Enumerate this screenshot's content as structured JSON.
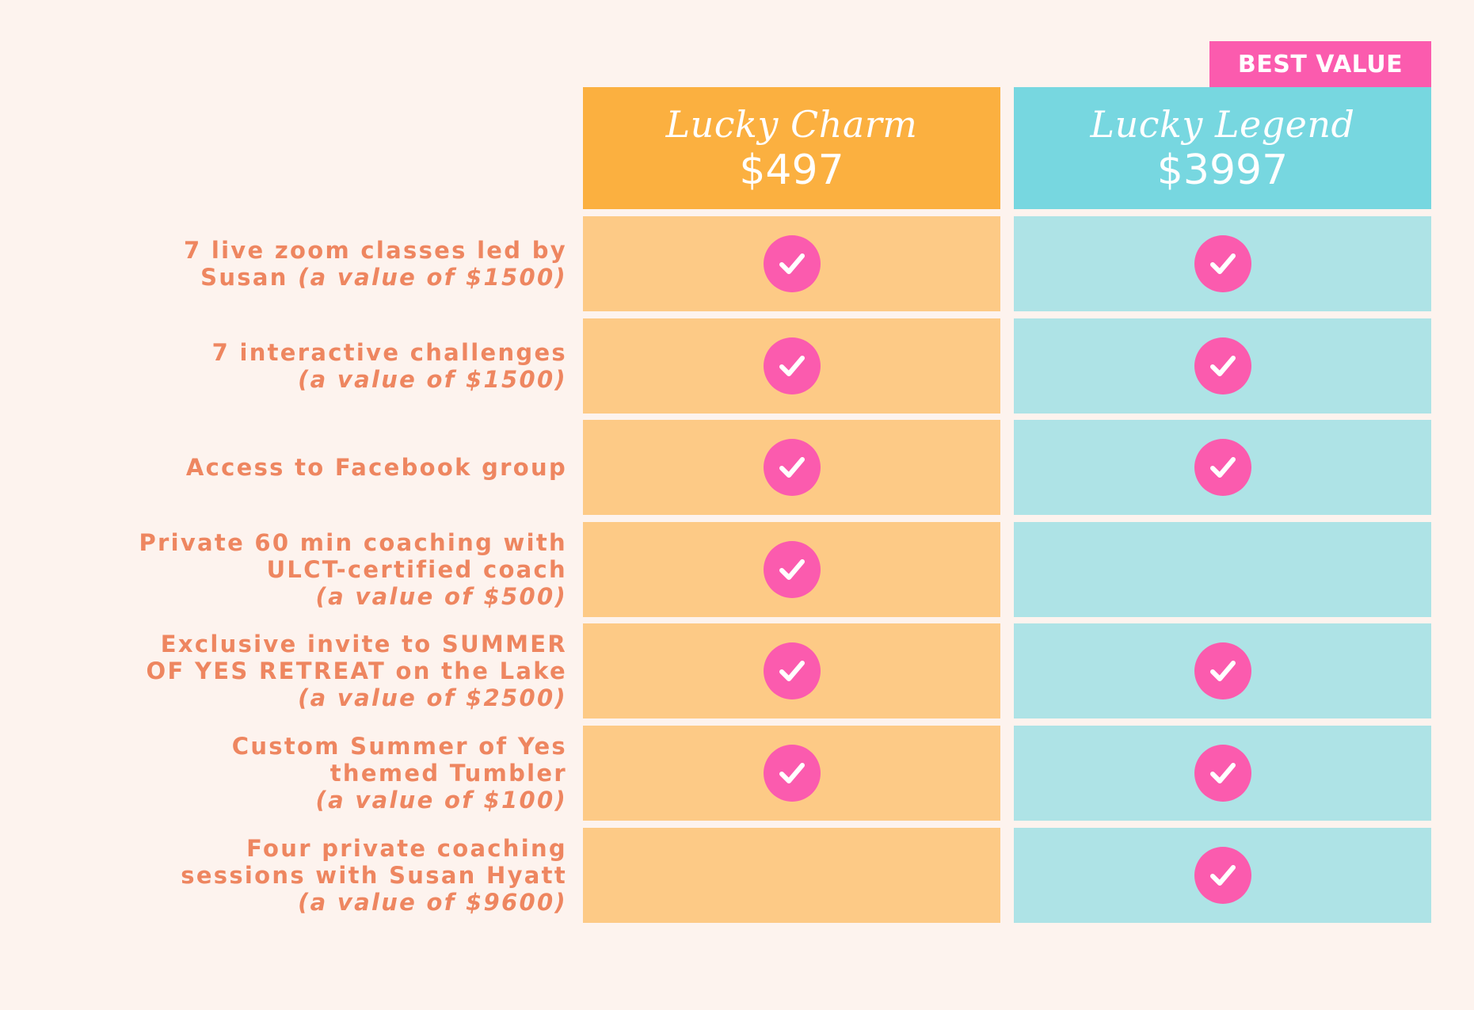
{
  "badge": "BEST VALUE",
  "plans": [
    {
      "name": "Lucky Charm",
      "price": "$497",
      "color": "#fbb040",
      "cell_color": "#fdca86"
    },
    {
      "name": "Lucky Legend",
      "price": "$3997",
      "color": "#77d7e0",
      "cell_color": "#aee3e6"
    }
  ],
  "check_color": "#fb5bae",
  "label_color": "#ee8660",
  "rows": [
    {
      "lines": [
        "7 live zoom classes led by"
      ],
      "last_plain": "Susan ",
      "last_note": "(a value of $1500)",
      "charm": true,
      "legend": true
    },
    {
      "lines": [
        "7 interactive challenges"
      ],
      "last_plain": "",
      "last_note": "(a value of $1500)",
      "charm": true,
      "legend": true
    },
    {
      "lines": [
        "Access to Facebook group"
      ],
      "last_plain": "",
      "last_note": "",
      "charm": true,
      "legend": true
    },
    {
      "lines": [
        "Private 60 min coaching with",
        "ULCT-certified coach"
      ],
      "last_plain": "",
      "last_note": "(a value of $500)",
      "charm": true,
      "legend": false
    },
    {
      "lines": [
        "Exclusive invite to SUMMER",
        "OF YES RETREAT on the Lake"
      ],
      "last_plain": "",
      "last_note": "(a value of $2500)",
      "charm": true,
      "legend": true
    },
    {
      "lines": [
        "Custom Summer of Yes",
        "themed Tumbler"
      ],
      "last_plain": "",
      "last_note": "(a value of $100)",
      "charm": true,
      "legend": true
    },
    {
      "lines": [
        "Four private coaching",
        "sessions with Susan Hyatt"
      ],
      "last_plain": "",
      "last_note": "(a value of $9600)",
      "charm": false,
      "legend": true
    }
  ]
}
